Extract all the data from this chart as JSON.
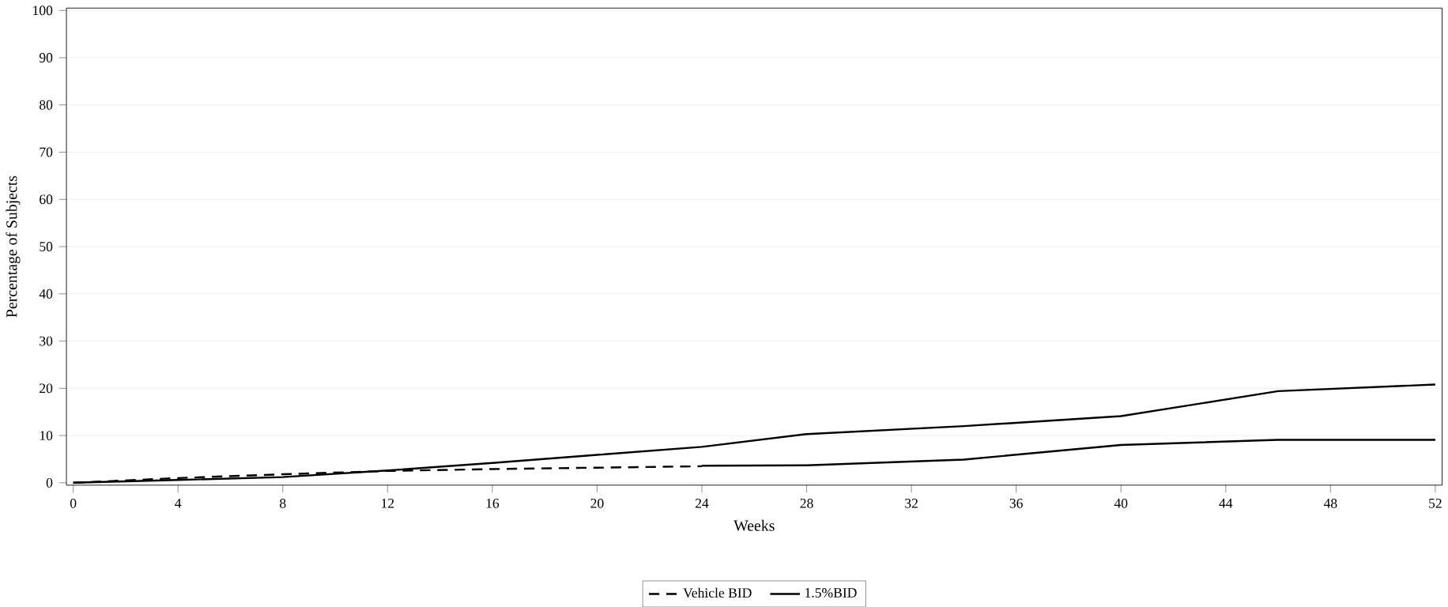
{
  "chart_data": {
    "type": "line",
    "xlabel": "Weeks",
    "ylabel": "Percentage of Subjects",
    "xlim": [
      0,
      52
    ],
    "xticks": [
      0,
      4,
      8,
      12,
      16,
      20,
      24,
      28,
      32,
      36,
      40,
      44,
      48,
      52
    ],
    "ylim": [
      0,
      100
    ],
    "yticks": [
      0,
      10,
      20,
      30,
      40,
      50,
      60,
      70,
      80,
      90,
      100
    ],
    "grid": "y",
    "legend": "bottom",
    "marker": "none",
    "series": [
      {
        "name": "Vehicle BID",
        "color": "#000000",
        "line_style": "dashed",
        "x": [
          0,
          4,
          8,
          12,
          16,
          20,
          24
        ],
        "values": [
          0,
          1,
          1.8,
          2.5,
          2.9,
          3.2,
          3.5
        ]
      },
      {
        "name": "1.5%BID",
        "color": "#000000",
        "line_style": "solid",
        "x": [
          0,
          4,
          8,
          12,
          16,
          20,
          24,
          28,
          34,
          40,
          46,
          52
        ],
        "values": [
          0,
          0.6,
          1.2,
          2.6,
          4.2,
          5.9,
          7.6,
          10.3,
          12,
          14.1,
          19.4,
          20.8
        ]
      },
      {
        "color": "#000000",
        "line_style": "solid",
        "x": [
          24,
          28,
          34,
          40,
          46,
          52
        ],
        "values": [
          3.6,
          3.7,
          4.9,
          8,
          9.1,
          9.1
        ]
      }
    ]
  }
}
